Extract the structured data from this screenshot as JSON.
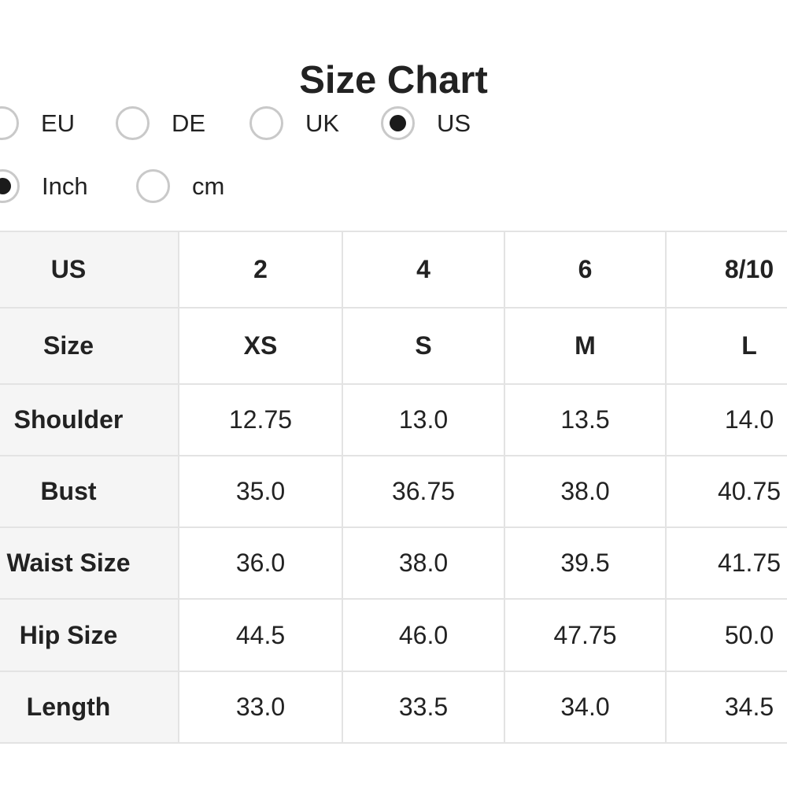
{
  "title": "Size Chart",
  "region_options": [
    {
      "label": "EU",
      "selected": false
    },
    {
      "label": "DE",
      "selected": false
    },
    {
      "label": "UK",
      "selected": false
    },
    {
      "label": "US",
      "selected": true
    }
  ],
  "unit_options": [
    {
      "label": "Inch",
      "selected": true
    },
    {
      "label": "cm",
      "selected": false
    }
  ],
  "table": {
    "rows": [
      {
        "header": "US",
        "bold": true,
        "values": [
          "2",
          "4",
          "6",
          "8/10"
        ]
      },
      {
        "header": "Size",
        "bold": true,
        "values": [
          "XS",
          "S",
          "M",
          "L"
        ]
      },
      {
        "header": "Shoulder",
        "bold": false,
        "values": [
          "12.75",
          "13.0",
          "13.5",
          "14.0"
        ]
      },
      {
        "header": "Bust",
        "bold": false,
        "values": [
          "35.0",
          "36.75",
          "38.0",
          "40.75"
        ]
      },
      {
        "header": "Waist Size",
        "bold": false,
        "values": [
          "36.0",
          "38.0",
          "39.5",
          "41.75"
        ]
      },
      {
        "header": "Hip Size",
        "bold": false,
        "values": [
          "44.5",
          "46.0",
          "47.75",
          "50.0"
        ]
      },
      {
        "header": "Length",
        "bold": false,
        "values": [
          "33.0",
          "33.5",
          "34.0",
          "34.5"
        ]
      }
    ]
  },
  "colors": {
    "text": "#222222",
    "row_header_bg": "#f5f5f5",
    "table_border": "#e3e3e3",
    "radio_ring": "#c9c9c9",
    "radio_dot": "#1b1b1b",
    "page_bg": "#ffffff"
  }
}
